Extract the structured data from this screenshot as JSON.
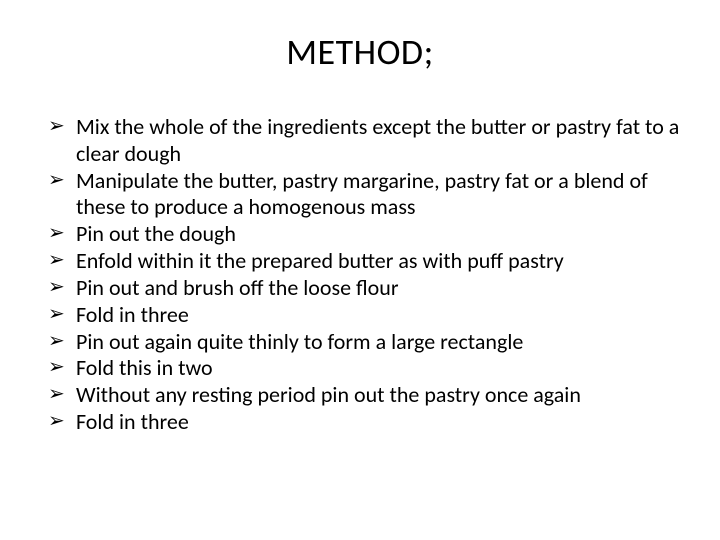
{
  "slide": {
    "title": "METHOD;",
    "title_fontsize": 36,
    "body_fontsize": 22,
    "text_color": "#000000",
    "background_color": "#ffffff",
    "bullet_glyph": "➢",
    "bullets": [
      "Mix the whole of the ingredients except the butter or pastry fat to a clear dough",
      "Manipulate the butter, pastry margarine, pastry fat or a blend of these  to produce a homogenous mass",
      "Pin out the dough",
      "Enfold within it the prepared butter as with puff pastry",
      "Pin out and  brush off the loose flour",
      "Fold in three",
      "Pin out again quite thinly to form a large rectangle",
      "Fold this in two",
      "Without any resting period pin out the pastry once again",
      "Fold in three"
    ]
  }
}
